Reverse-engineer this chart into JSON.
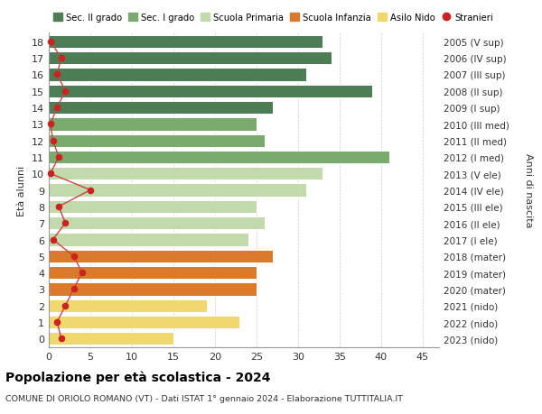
{
  "ages": [
    18,
    17,
    16,
    15,
    14,
    13,
    12,
    11,
    10,
    9,
    8,
    7,
    6,
    5,
    4,
    3,
    2,
    1,
    0
  ],
  "bar_values": [
    33,
    34,
    31,
    39,
    27,
    25,
    26,
    41,
    33,
    31,
    25,
    26,
    24,
    27,
    25,
    25,
    19,
    23,
    15
  ],
  "stranieri": [
    0.2,
    1.5,
    1.0,
    2.0,
    1.0,
    0.2,
    0.5,
    1.2,
    0.2,
    5.0,
    1.2,
    2.0,
    0.5,
    3.0,
    4.0,
    3.0,
    2.0,
    1.0,
    1.5
  ],
  "right_labels_by_age": {
    "18": "2005 (V sup)",
    "17": "2006 (IV sup)",
    "16": "2007 (III sup)",
    "15": "2008 (II sup)",
    "14": "2009 (I sup)",
    "13": "2010 (III med)",
    "12": "2011 (II med)",
    "11": "2012 (I med)",
    "10": "2013 (V ele)",
    "9": "2014 (IV ele)",
    "8": "2015 (III ele)",
    "7": "2016 (II ele)",
    "6": "2017 (I ele)",
    "5": "2018 (mater)",
    "4": "2019 (mater)",
    "3": "2020 (mater)",
    "2": "2021 (nido)",
    "1": "2022 (nido)",
    "0": "2023 (nido)"
  },
  "bar_colors": [
    "#4d7d55",
    "#4d7d55",
    "#4d7d55",
    "#4d7d55",
    "#4d7d55",
    "#7aaa6e",
    "#7aaa6e",
    "#7aaa6e",
    "#c2d9ac",
    "#c2d9ac",
    "#c2d9ac",
    "#c2d9ac",
    "#c2d9ac",
    "#d97b2c",
    "#d97b2c",
    "#d97b2c",
    "#f0d86e",
    "#f0d86e",
    "#f0d86e"
  ],
  "legend_labels": [
    "Sec. II grado",
    "Sec. I grado",
    "Scuola Primaria",
    "Scuola Infanzia",
    "Asilo Nido",
    "Stranieri"
  ],
  "legend_colors": [
    "#4d7d55",
    "#7aaa6e",
    "#c2d9ac",
    "#d97b2c",
    "#f0d86e",
    "#cc2222"
  ],
  "title": "Popolazione per età scolastica - 2024",
  "subtitle": "COMUNE DI ORIOLO ROMANO (VT) - Dati ISTAT 1° gennaio 2024 - Elaborazione TUTTITALIA.IT",
  "ylabel_left": "Età alunni",
  "ylabel_right": "Anni di nascita",
  "xlim": [
    0,
    47
  ],
  "ylim": [
    -0.55,
    18.55
  ],
  "background_color": "#ffffff",
  "bar_height": 0.78,
  "grid_color": "#cccccc",
  "stranieri_color": "#cc2222",
  "stranieri_line_color": "#cc4444"
}
